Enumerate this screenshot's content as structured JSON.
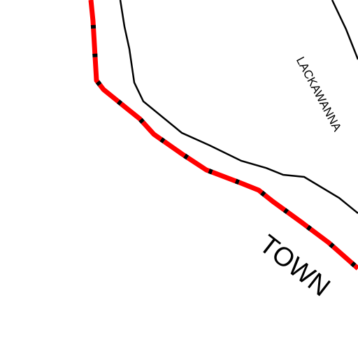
{
  "labels": {
    "area": "LACKAWANNA",
    "place": "TOWN"
  }
}
